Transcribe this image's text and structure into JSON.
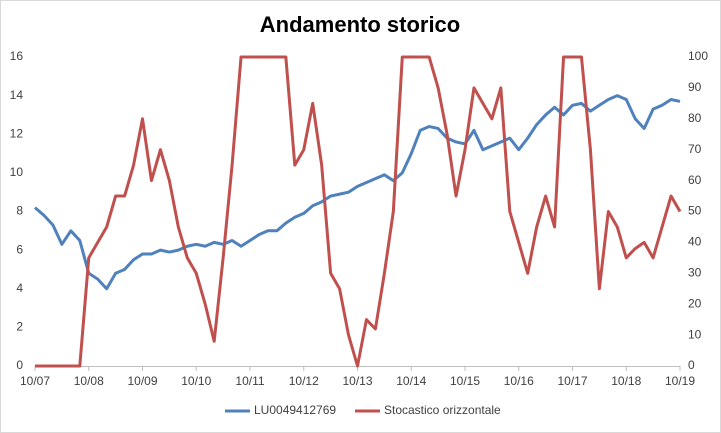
{
  "chart_data": {
    "type": "line",
    "title": "Andamento storico",
    "categories": [
      "10/07",
      null,
      null,
      null,
      null,
      null,
      "10/08",
      null,
      null,
      null,
      null,
      null,
      "10/09",
      null,
      null,
      null,
      null,
      null,
      "10/10",
      null,
      null,
      null,
      null,
      null,
      "10/11",
      null,
      null,
      null,
      null,
      null,
      "10/12",
      null,
      null,
      null,
      null,
      null,
      "10/13",
      null,
      null,
      null,
      null,
      null,
      "10/14",
      null,
      null,
      null,
      null,
      null,
      "10/15",
      null,
      null,
      null,
      null,
      null,
      "10/16",
      null,
      null,
      null,
      null,
      null,
      "10/17",
      null,
      null,
      null,
      null,
      null,
      "10/18",
      null,
      null,
      null,
      null,
      null,
      "10/19"
    ],
    "series": [
      {
        "name": "LU0049412769",
        "color": "#4f81bd",
        "values": [
          8.2,
          7.8,
          7.3,
          6.3,
          7.0,
          6.5,
          4.8,
          4.5,
          4.0,
          4.8,
          5.0,
          5.5,
          5.8,
          5.8,
          6.0,
          5.9,
          6.0,
          6.2,
          6.3,
          6.2,
          6.4,
          6.3,
          6.5,
          6.2,
          6.5,
          6.8,
          7.0,
          7.0,
          7.4,
          7.7,
          7.9,
          8.3,
          8.5,
          8.8,
          8.9,
          9.0,
          9.3,
          9.5,
          9.7,
          9.9,
          9.6,
          10.0,
          11.0,
          12.2,
          12.4,
          12.3,
          11.8,
          11.6,
          11.5,
          12.2,
          11.2,
          11.4,
          11.6,
          11.8,
          11.2,
          11.8,
          12.5,
          13.0,
          13.4,
          13.0,
          13.5,
          13.6,
          13.2,
          13.5,
          13.8,
          14.0,
          13.8,
          12.8,
          12.3,
          13.3,
          13.5,
          13.8,
          13.7
        ]
      },
      {
        "name": "Stocastico orizzontale",
        "color": "#c0504d",
        "axis": "y2",
        "values": [
          0,
          0,
          0,
          0,
          0,
          0,
          35,
          40,
          45,
          55,
          55,
          65,
          80,
          60,
          70,
          60,
          45,
          35,
          30,
          20,
          8,
          35,
          65,
          100,
          100,
          100,
          100,
          100,
          100,
          65,
          70,
          85,
          65,
          30,
          25,
          10,
          0,
          15,
          12,
          30,
          50,
          100,
          100,
          100,
          100,
          90,
          75,
          55,
          70,
          90,
          85,
          80,
          90,
          50,
          40,
          30,
          45,
          55,
          45,
          100,
          100,
          100,
          70,
          25,
          50,
          45,
          35,
          38,
          40,
          35,
          45,
          55,
          50
        ]
      }
    ],
    "ylim": [
      0,
      16
    ],
    "yticks": [
      0,
      2,
      4,
      6,
      8,
      10,
      12,
      14,
      16
    ],
    "y2lim": [
      0,
      100
    ],
    "y2ticks": [
      0,
      10,
      20,
      30,
      40,
      50,
      60,
      70,
      80,
      90,
      100
    ],
    "legend": "bottom",
    "grid": false
  }
}
